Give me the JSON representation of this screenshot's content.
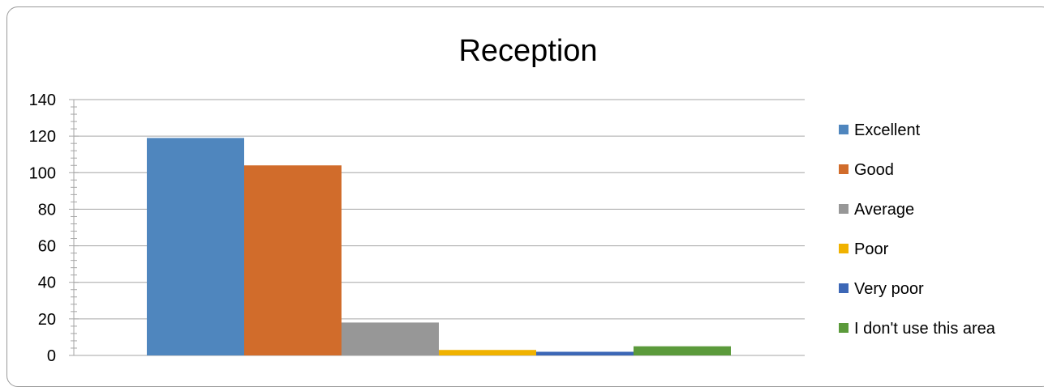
{
  "chart_data": {
    "type": "bar",
    "title": "Reception",
    "categories": [
      ""
    ],
    "series": [
      {
        "name": "Excellent",
        "values": [
          119
        ],
        "color": "#4f86be"
      },
      {
        "name": "Good",
        "values": [
          104
        ],
        "color": "#d16c2b"
      },
      {
        "name": "Average",
        "values": [
          18
        ],
        "color": "#979797"
      },
      {
        "name": "Poor",
        "values": [
          3
        ],
        "color": "#f0b200"
      },
      {
        "name": "Very poor",
        "values": [
          2
        ],
        "color": "#3c67b6"
      },
      {
        "name": "I don't use this area",
        "values": [
          5
        ],
        "color": "#5b9a3b"
      }
    ],
    "y_ticks": [
      "0",
      "20",
      "40",
      "60",
      "80",
      "100",
      "120",
      "140"
    ],
    "ylim": [
      0,
      140
    ],
    "grid": true,
    "legend_position": "right"
  }
}
